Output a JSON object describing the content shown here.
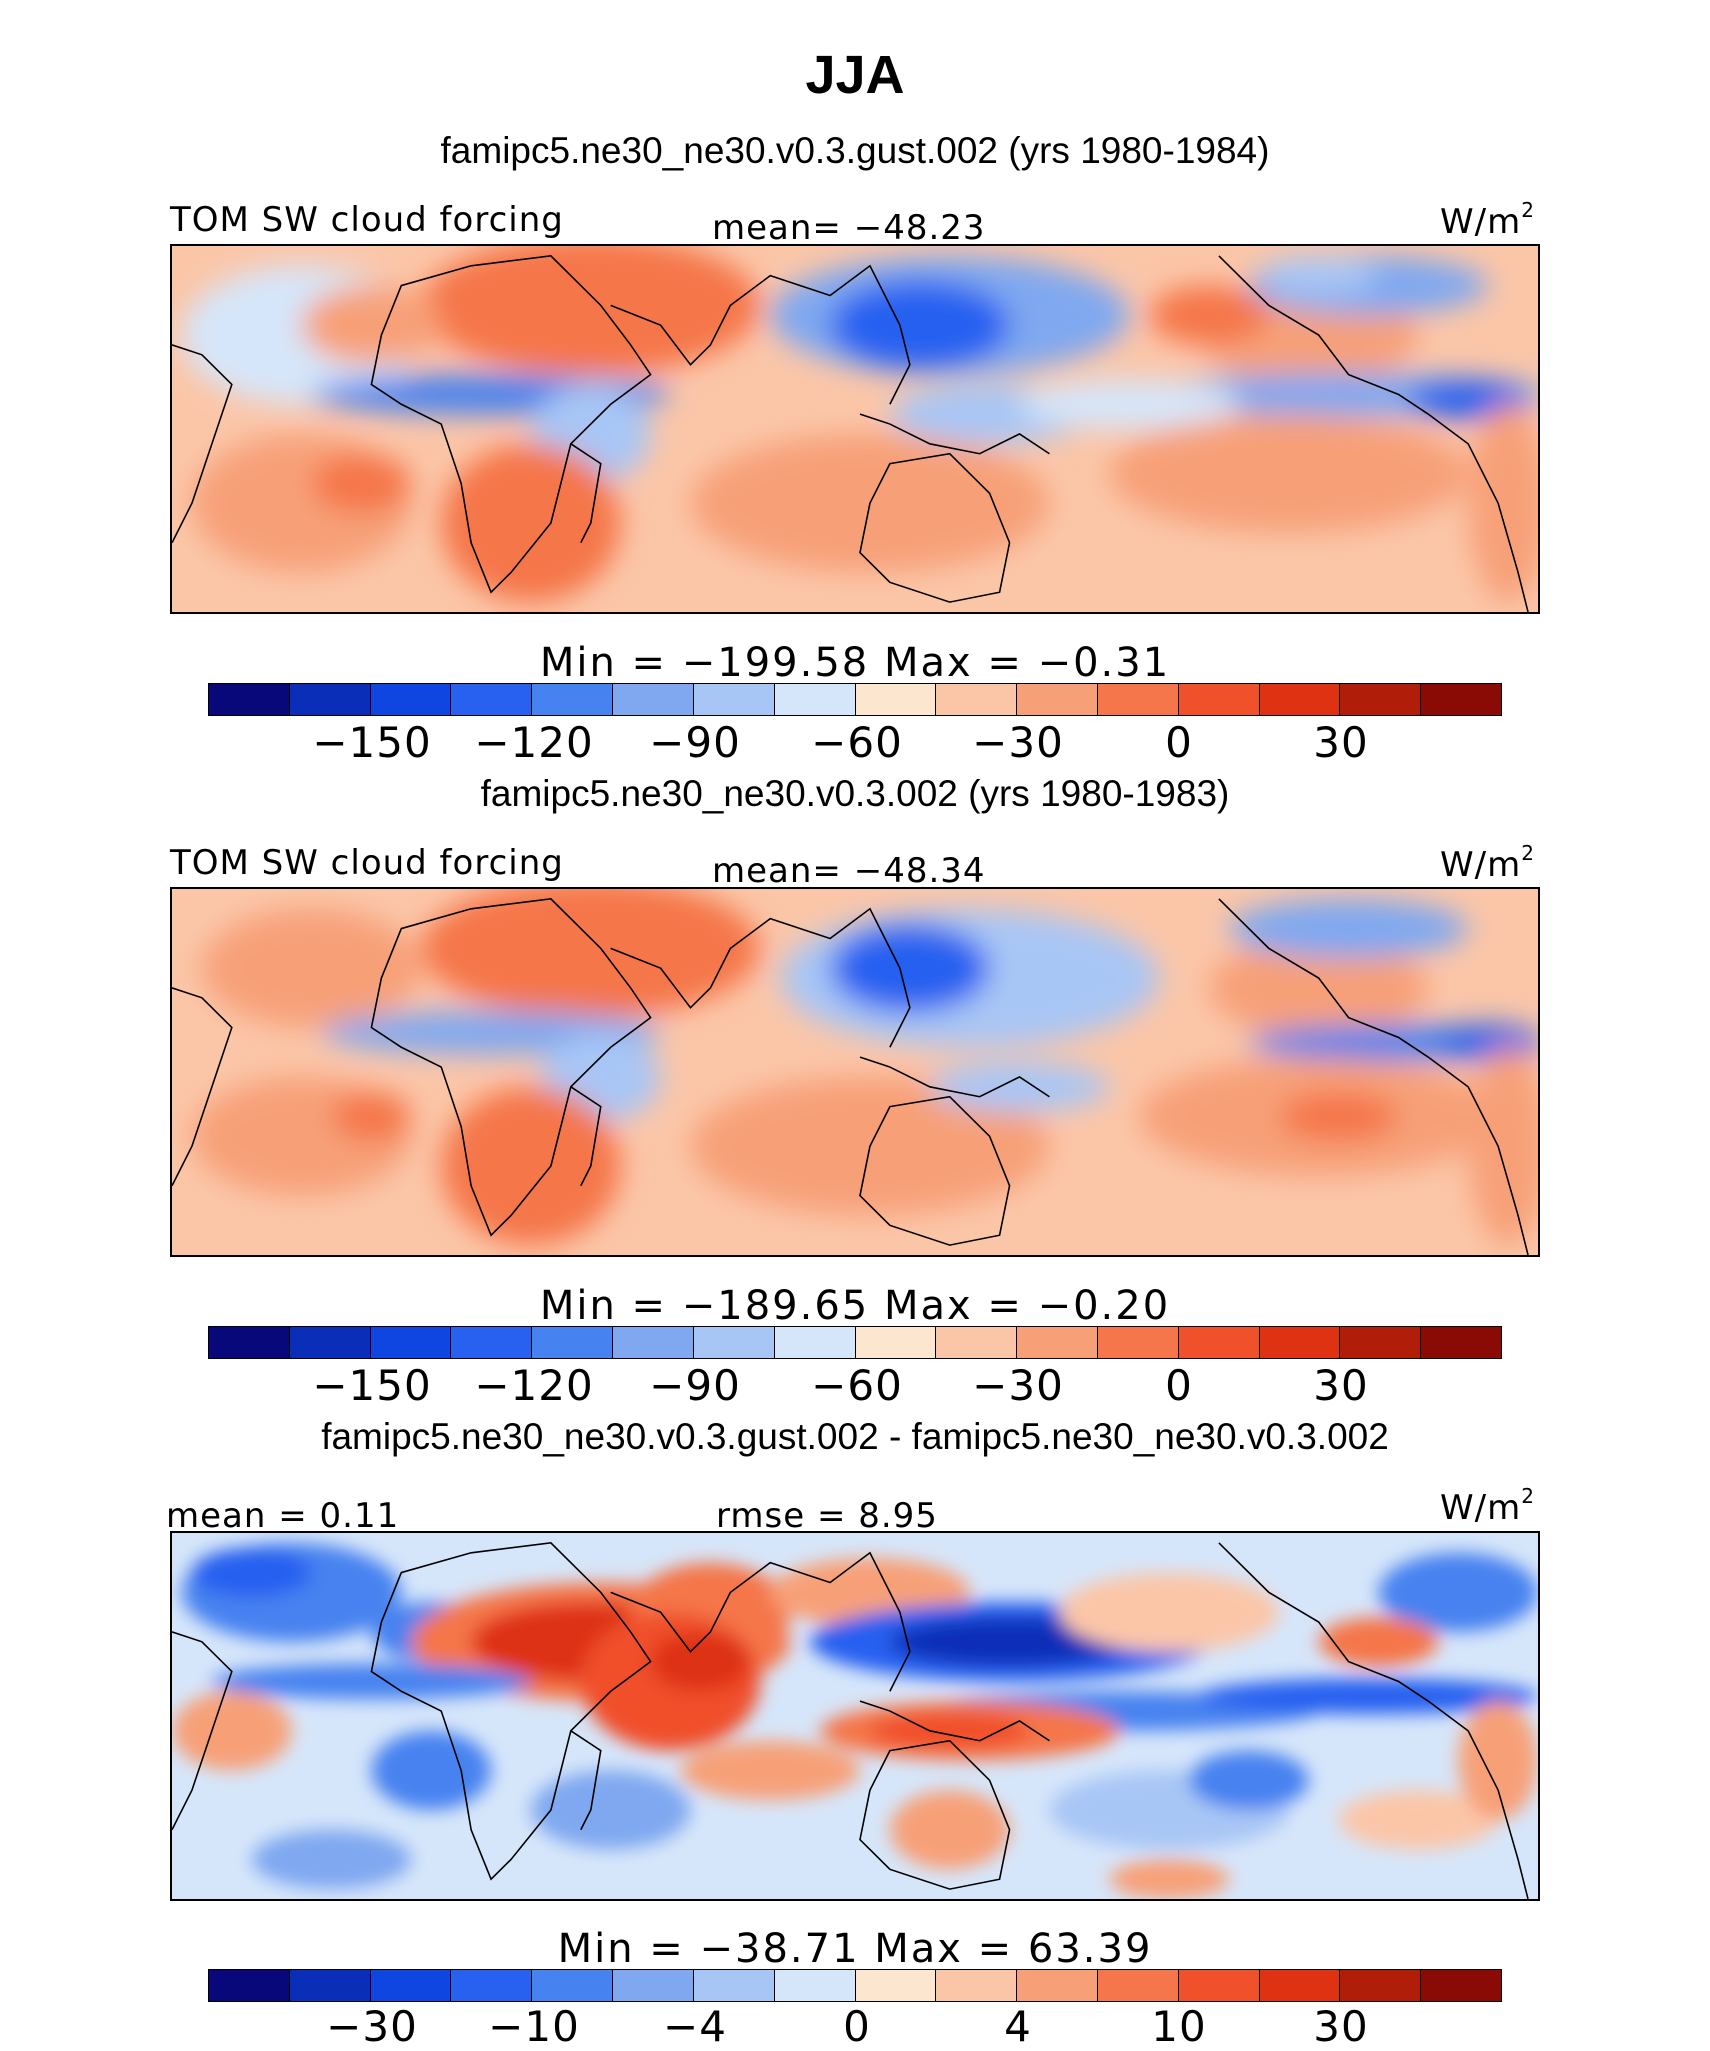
{
  "title": "JJA",
  "colors": {
    "scale": [
      "#08087a",
      "#0a2eb8",
      "#0f45e0",
      "#2860f0",
      "#4682f0",
      "#7fa8f0",
      "#a8c6f5",
      "#d6e6fa",
      "#fde6d0",
      "#fbc6a8",
      "#f7a078",
      "#f5764a",
      "#f0502a",
      "#de3212",
      "#b01e0a",
      "#8a0a05"
    ]
  },
  "panels": [
    {
      "case": "famipc5.ne30_ne30.v0.3.gust.002 (yrs 1980-1984)",
      "variable": "TOM SW cloud forcing",
      "mean": "mean=  −48.23",
      "units": "W/m",
      "units_sup": "2",
      "minmax": "Min  =  −199.58  Max  =    −0.31",
      "ticks": [
        "−150",
        "−120",
        "−90",
        "−60",
        "−30",
        "0",
        "30"
      ]
    },
    {
      "case": "famipc5.ne30_ne30.v0.3.002 (yrs 1980-1983)",
      "variable": "TOM SW cloud forcing",
      "mean": "mean=  −48.34",
      "units": "W/m",
      "units_sup": "2",
      "minmax": "Min  =  −189.65  Max  =    −0.20",
      "ticks": [
        "−150",
        "−120",
        "−90",
        "−60",
        "−30",
        "0",
        "30"
      ]
    },
    {
      "case": "famipc5.ne30_ne30.v0.3.gust.002 - famipc5.ne30_ne30.v0.3.002",
      "variable": "mean  =    0.11",
      "mean": "rmse  =    8.95",
      "units": "W/m",
      "units_sup": "2",
      "minmax": "Min  =  −38.71  Max  =   63.39",
      "ticks": [
        "−30",
        "−10",
        "−4",
        "0",
        "4",
        "10",
        "30"
      ]
    }
  ]
}
